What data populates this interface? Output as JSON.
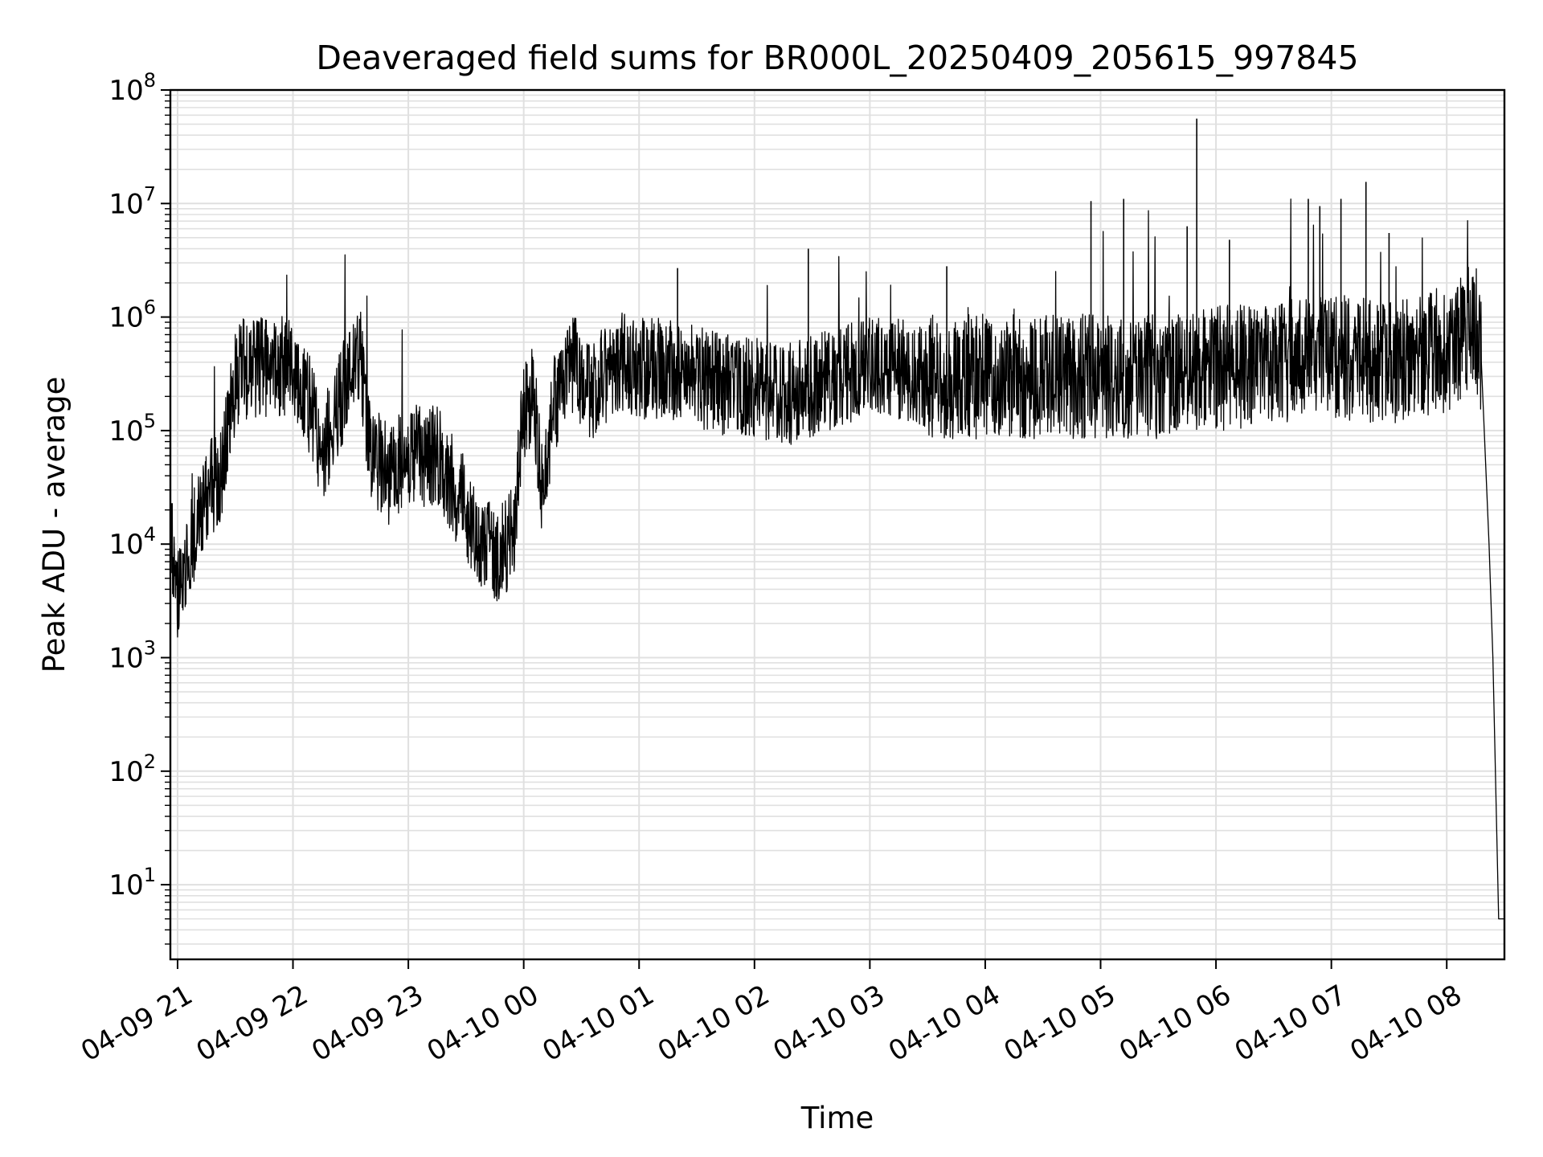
{
  "chart_data": {
    "type": "line",
    "title": "Deaveraged field sums for BR000L_20250409_205615_997845",
    "xlabel": "Time",
    "ylabel": "Peak ADU - average",
    "yscale": "log",
    "ylim": [
      2.2,
      100000000
    ],
    "xlim": [
      "2025-04-09 20:56:15",
      "2025-04-10 08:30:00"
    ],
    "grid": true,
    "line_color": "#000000",
    "grid_color": "#e0e0e0",
    "x_ticks": [
      "2025-04-09 21:00",
      "2025-04-09 22:00",
      "2025-04-09 23:00",
      "2025-04-10 00:00",
      "2025-04-10 01:00",
      "2025-04-10 02:00",
      "2025-04-10 03:00",
      "2025-04-10 04:00",
      "2025-04-10 05:00",
      "2025-04-10 06:00",
      "2025-04-10 07:00",
      "2025-04-10 08:00"
    ],
    "x_tick_labels": [
      "04-09 21",
      "04-09 22",
      "04-09 23",
      "04-10 00",
      "04-10 01",
      "04-10 02",
      "04-10 03",
      "04-10 04",
      "04-10 05",
      "04-10 06",
      "04-10 07",
      "04-10 08"
    ],
    "y_ticks": [
      10,
      100,
      1000,
      10000,
      100000,
      1000000,
      10000000,
      100000000
    ],
    "y_tick_labels": [
      {
        "base": "10",
        "exp": "1"
      },
      {
        "base": "10",
        "exp": "2"
      },
      {
        "base": "10",
        "exp": "3"
      },
      {
        "base": "10",
        "exp": "4"
      },
      {
        "base": "10",
        "exp": "5"
      },
      {
        "base": "10",
        "exp": "6"
      },
      {
        "base": "10",
        "exp": "7"
      },
      {
        "base": "10",
        "exp": "8"
      }
    ],
    "series": [
      {
        "x": [
          "2025-04-09 20:56:15",
          "2025-04-09 20:58",
          "2025-04-09 21:00",
          "2025-04-09 21:03",
          "2025-04-09 21:07",
          "2025-04-09 21:12",
          "2025-04-09 21:18",
          "2025-04-09 21:22",
          "2025-04-09 21:26",
          "2025-04-09 21:30",
          "2025-04-09 21:33",
          "2025-04-09 21:36",
          "2025-04-09 21:45",
          "2025-04-09 22:00",
          "2025-04-09 22:10",
          "2025-04-09 22:15",
          "2025-04-09 22:25",
          "2025-04-09 22:35",
          "2025-04-09 22:40",
          "2025-04-09 22:50",
          "2025-04-09 23:00",
          "2025-04-09 23:15",
          "2025-04-09 23:30",
          "2025-04-09 23:40",
          "2025-04-09 23:48",
          "2025-04-09 23:55",
          "2025-04-10 00:00",
          "2025-04-10 00:05",
          "2025-04-10 00:10",
          "2025-04-10 00:15",
          "2025-04-10 00:20",
          "2025-04-10 00:25",
          "2025-04-10 00:35",
          "2025-04-10 00:40",
          "2025-04-10 00:50",
          "2025-04-10 01:00",
          "2025-04-10 01:15",
          "2025-04-10 01:30",
          "2025-04-10 01:45",
          "2025-04-10 02:00",
          "2025-04-10 02:15",
          "2025-04-10 02:30",
          "2025-04-10 02:45",
          "2025-04-10 03:00",
          "2025-04-10 03:15",
          "2025-04-10 03:30",
          "2025-04-10 03:45",
          "2025-04-10 04:00",
          "2025-04-10 04:30",
          "2025-04-10 05:00",
          "2025-04-10 05:30",
          "2025-04-10 06:00",
          "2025-04-10 06:30",
          "2025-04-10 07:00",
          "2025-04-10 07:30",
          "2025-04-10 08:00",
          "2025-04-10 08:12",
          "2025-04-10 08:15",
          "2025-04-10 08:18",
          "2025-04-10 08:22",
          "2025-04-10 08:24",
          "2025-04-10 08:27",
          "2025-04-10 08:30"
        ],
        "y": [
          20000,
          5000,
          3000,
          5000,
          10000,
          20000,
          35000,
          40000,
          90000,
          250000,
          400000,
          350000,
          350000,
          400000,
          150000,
          60000,
          200000,
          500000,
          70000,
          40000,
          60000,
          60000,
          20000,
          10000,
          8000,
          15000,
          150000,
          200000,
          25000,
          150000,
          300000,
          400000,
          200000,
          300000,
          400000,
          350000,
          350000,
          300000,
          250000,
          250000,
          200000,
          250000,
          300000,
          400000,
          350000,
          300000,
          300000,
          300000,
          300000,
          300000,
          300000,
          350000,
          400000,
          450000,
          400000,
          500000,
          800000,
          900000,
          400000,
          10000,
          1000,
          5,
          5
        ]
      }
    ],
    "spikes": [
      {
        "x": "2025-04-10 01:20",
        "y": 2700000
      },
      {
        "x": "2025-04-10 02:28",
        "y": 4000000
      },
      {
        "x": "2025-04-10 03:40",
        "y": 2800000
      },
      {
        "x": "2025-04-10 04:55",
        "y": 10500000
      },
      {
        "x": "2025-04-10 05:12",
        "y": 11000000
      },
      {
        "x": "2025-04-10 05:50",
        "y": 56000000
      },
      {
        "x": "2025-04-10 05:45",
        "y": 6300000
      },
      {
        "x": "2025-04-10 06:07",
        "y": 4800000
      },
      {
        "x": "2025-04-10 06:48",
        "y": 11000000
      },
      {
        "x": "2025-04-10 06:54",
        "y": 9500000
      },
      {
        "x": "2025-04-10 07:05",
        "y": 11000000
      },
      {
        "x": "2025-04-10 07:18",
        "y": 15500000
      },
      {
        "x": "2025-04-10 07:30",
        "y": 5500000
      }
    ]
  }
}
